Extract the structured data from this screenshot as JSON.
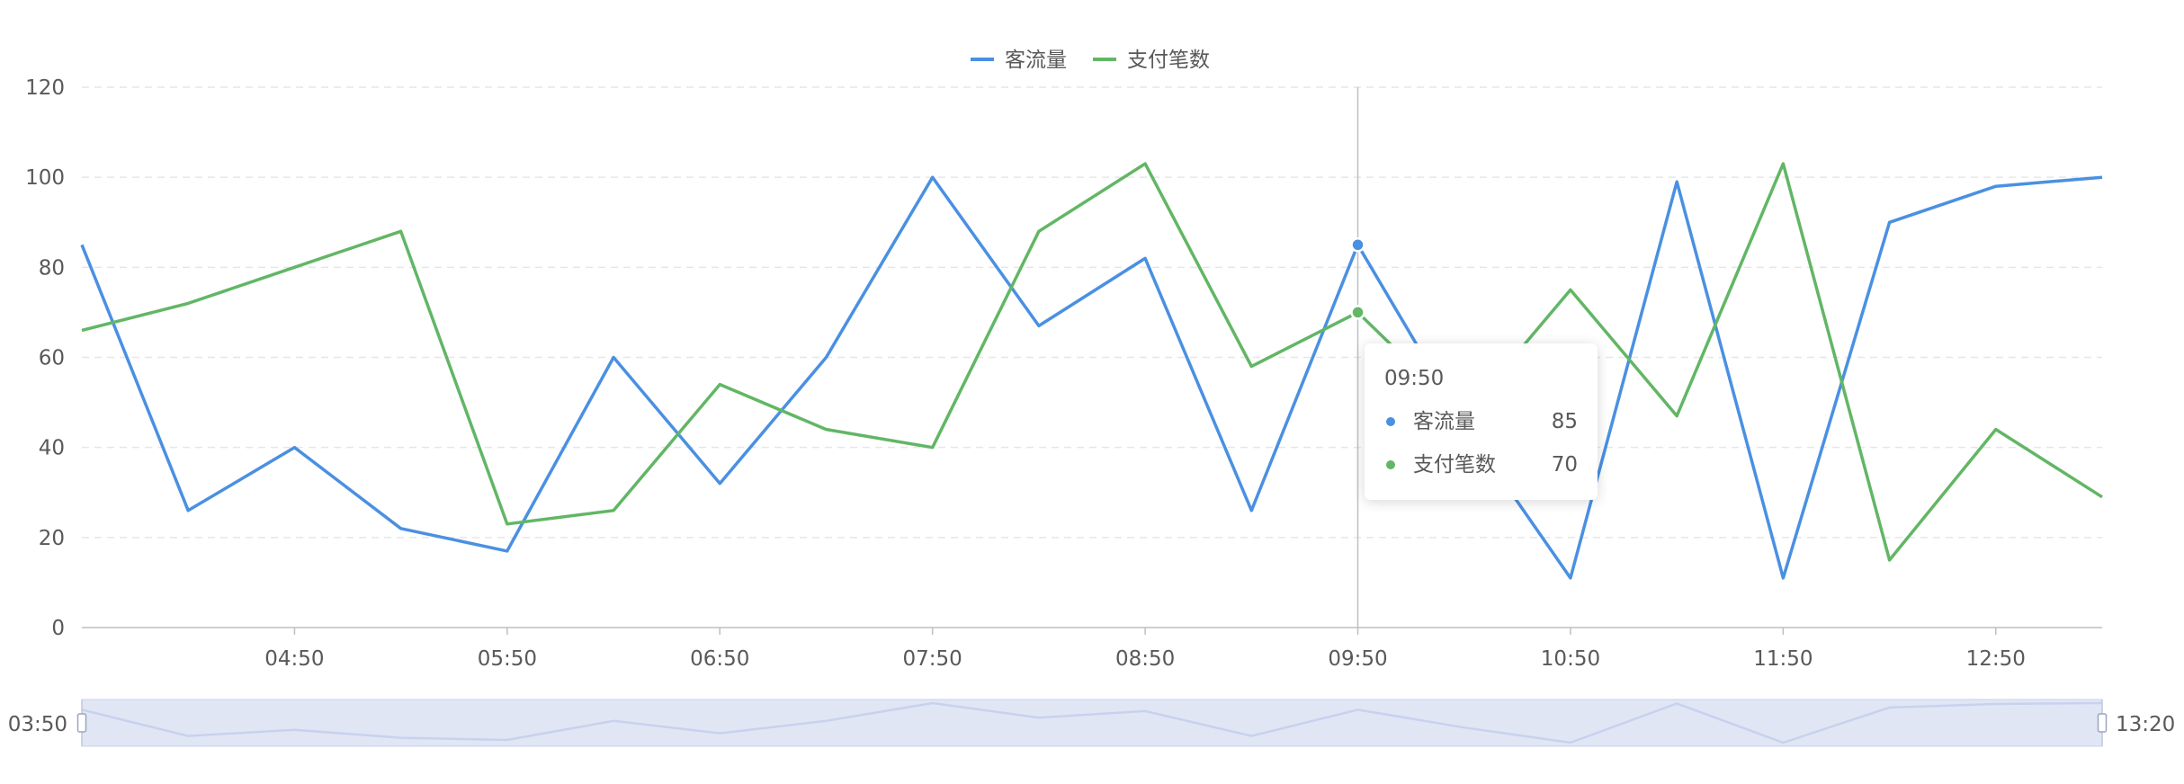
{
  "colors": {
    "series_blue": "#4a90e2",
    "series_green": "#62b665",
    "axis_text": "#595959",
    "grid": "#e6e6e6",
    "slider_fill": "#e1e6f5",
    "slider_line": "#c8d2ee",
    "crosshair": "#bfbfbf"
  },
  "legend": {
    "position": "top-center",
    "items": [
      {
        "name": "客流量",
        "color": "#4a90e2"
      },
      {
        "name": "支付笔数",
        "color": "#62b665"
      }
    ]
  },
  "tooltip": {
    "title": "09:50",
    "rows": [
      {
        "name": "客流量",
        "value": "85",
        "color": "#4a90e2"
      },
      {
        "name": "支付笔数",
        "value": "70",
        "color": "#62b665"
      }
    ]
  },
  "slider": {
    "start_label": "03:50",
    "end_label": "13:20"
  },
  "chart_data": {
    "type": "line",
    "x": [
      "03:50",
      "04:20",
      "04:50",
      "05:20",
      "05:50",
      "06:20",
      "06:50",
      "07:20",
      "07:50",
      "08:20",
      "08:50",
      "09:20",
      "09:50",
      "10:20",
      "10:50",
      "11:20",
      "11:50",
      "12:20",
      "12:50",
      "13:20"
    ],
    "x_tick_labels": [
      "04:50",
      "05:50",
      "06:50",
      "07:50",
      "08:50",
      "09:50",
      "10:50",
      "11:50",
      "12:50"
    ],
    "ylim": [
      0,
      120
    ],
    "y_ticks": [
      0,
      20,
      40,
      60,
      80,
      100,
      120
    ],
    "grid": "horizontal-dashed",
    "highlight_x": "09:50",
    "series": [
      {
        "name": "客流量",
        "values": [
          85,
          26,
          40,
          22,
          17,
          60,
          32,
          60,
          100,
          67,
          82,
          26,
          85,
          45,
          11,
          99,
          11,
          90,
          98,
          100
        ]
      },
      {
        "name": "支付笔数",
        "values": [
          66,
          72,
          80,
          88,
          23,
          26,
          54,
          44,
          40,
          88,
          103,
          58,
          70,
          47,
          75,
          47,
          103,
          15,
          44,
          29
        ]
      }
    ]
  }
}
